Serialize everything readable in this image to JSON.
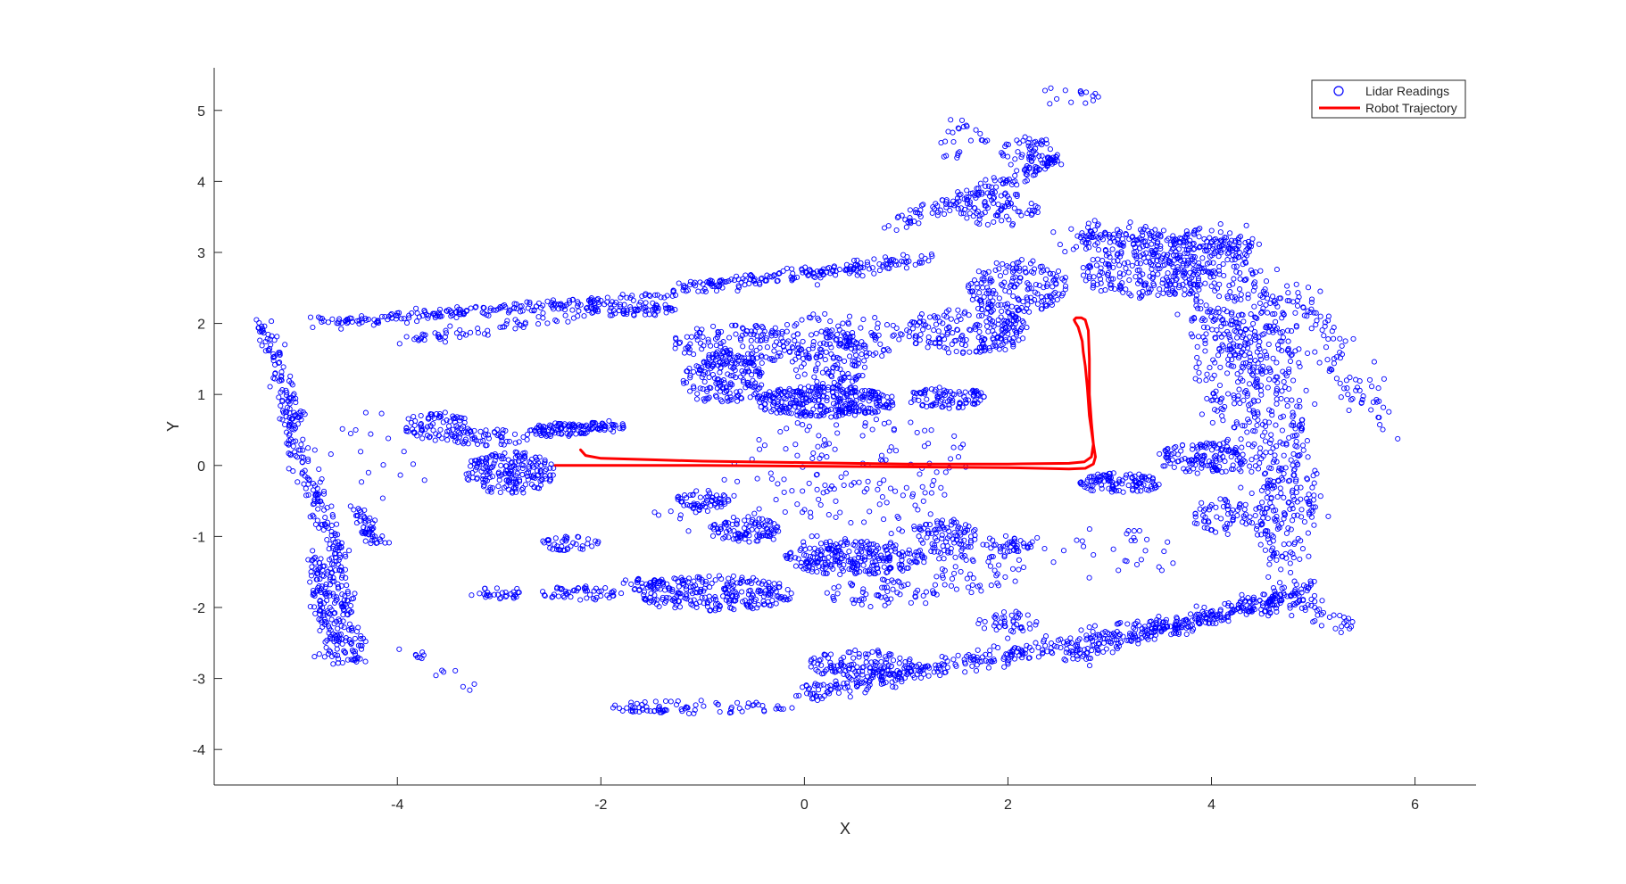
{
  "chart_data": {
    "type": "scatter",
    "title": "",
    "xlabel": "X",
    "ylabel": "Y",
    "xlim": [
      -5.8,
      6.6
    ],
    "ylim": [
      -4.5,
      5.6
    ],
    "xticks": [
      -4,
      -2,
      0,
      2,
      4,
      6
    ],
    "yticks": [
      -4,
      -3,
      -2,
      -1,
      0,
      1,
      2,
      3,
      4,
      5
    ],
    "xtick_labels": [
      "-4",
      "-2",
      "0",
      "2",
      "4",
      "6"
    ],
    "ytick_labels": [
      "-4",
      "-3",
      "-2",
      "-1",
      "0",
      "1",
      "2",
      "3",
      "4",
      "5"
    ],
    "grid": false,
    "legend": {
      "location": "top-right"
    },
    "series": [
      {
        "name": "Lidar Readings",
        "marker": "open-circle",
        "color": "#0000ff",
        "clusters": [
          {
            "shape": "line",
            "from": [
              -4.8,
              2.0
            ],
            "to": [
              -1.2,
              2.4
            ],
            "count": 220,
            "spread": 0.04
          },
          {
            "shape": "line",
            "from": [
              -1.2,
              2.5
            ],
            "to": [
              1.2,
              2.9
            ],
            "count": 200,
            "spread": 0.05
          },
          {
            "shape": "line",
            "from": [
              -4.0,
              1.75
            ],
            "to": [
              -2.0,
              2.15
            ],
            "count": 60,
            "spread": 0.05
          },
          {
            "shape": "line",
            "from": [
              -5.3,
              2.0
            ],
            "to": [
              -5.0,
              0.6
            ],
            "count": 90,
            "spread": 0.05
          },
          {
            "shape": "line",
            "from": [
              -5.1,
              0.8
            ],
            "to": [
              -4.9,
              -0.2
            ],
            "count": 60,
            "spread": 0.05
          },
          {
            "shape": "line",
            "from": [
              -4.85,
              -0.2
            ],
            "to": [
              -4.55,
              -1.3
            ],
            "count": 80,
            "spread": 0.05
          },
          {
            "shape": "line",
            "from": [
              -4.8,
              -1.3
            ],
            "to": [
              -4.6,
              -2.8
            ],
            "count": 140,
            "spread": 0.07
          },
          {
            "shape": "line",
            "from": [
              -4.6,
              -1.3
            ],
            "to": [
              -4.4,
              -2.8
            ],
            "count": 100,
            "spread": 0.06
          },
          {
            "shape": "line",
            "from": [
              -4.4,
              -0.6
            ],
            "to": [
              -4.2,
              -1.1
            ],
            "count": 50,
            "spread": 0.05
          },
          {
            "shape": "line",
            "from": [
              -3.9,
              -2.6
            ],
            "to": [
              -3.2,
              -3.2
            ],
            "count": 15,
            "spread": 0.05
          },
          {
            "shape": "blob",
            "center": [
              -3.6,
              0.55
            ],
            "radius": [
              0.35,
              0.2
            ],
            "count": 90
          },
          {
            "shape": "blob",
            "center": [
              -2.9,
              -0.1
            ],
            "radius": [
              0.45,
              0.3
            ],
            "count": 200
          },
          {
            "shape": "blob",
            "center": [
              -2.4,
              0.5
            ],
            "radius": [
              0.3,
              0.1
            ],
            "count": 80
          },
          {
            "shape": "blob",
            "center": [
              -1.95,
              0.55
            ],
            "radius": [
              0.2,
              0.08
            ],
            "count": 40
          },
          {
            "shape": "blob",
            "center": [
              -3.1,
              0.4
            ],
            "radius": [
              0.4,
              0.12
            ],
            "count": 50
          },
          {
            "shape": "blob",
            "center": [
              -1.7,
              2.2
            ],
            "radius": [
              0.45,
              0.1
            ],
            "count": 70
          },
          {
            "shape": "blob",
            "center": [
              -0.7,
              1.7
            ],
            "radius": [
              0.6,
              0.3
            ],
            "count": 150
          },
          {
            "shape": "blob",
            "center": [
              -0.8,
              1.2
            ],
            "radius": [
              0.4,
              0.35
            ],
            "count": 160
          },
          {
            "shape": "blob",
            "center": [
              0.2,
              0.9
            ],
            "radius": [
              0.7,
              0.22
            ],
            "count": 320
          },
          {
            "shape": "blob",
            "center": [
              0.25,
              1.5
            ],
            "radius": [
              0.4,
              0.4
            ],
            "count": 120
          },
          {
            "shape": "blob",
            "center": [
              1.4,
              0.95
            ],
            "radius": [
              0.4,
              0.15
            ],
            "count": 90
          },
          {
            "shape": "blob",
            "center": [
              1.6,
              1.9
            ],
            "radius": [
              0.6,
              0.35
            ],
            "count": 200
          },
          {
            "shape": "blob",
            "center": [
              2.1,
              2.5
            ],
            "radius": [
              0.5,
              0.4
            ],
            "count": 180
          },
          {
            "shape": "blob",
            "center": [
              0.3,
              1.8
            ],
            "radius": [
              0.7,
              0.35
            ],
            "count": 100
          },
          {
            "shape": "line",
            "from": [
              0.9,
              3.4
            ],
            "to": [
              2.5,
              4.3
            ],
            "count": 130,
            "spread": 0.06
          },
          {
            "shape": "blob",
            "center": [
              2.2,
              4.4
            ],
            "radius": [
              0.3,
              0.25
            ],
            "count": 60
          },
          {
            "shape": "blob",
            "center": [
              1.9,
              3.6
            ],
            "radius": [
              0.4,
              0.25
            ],
            "count": 80
          },
          {
            "shape": "blob",
            "center": [
              1.5,
              4.6
            ],
            "radius": [
              0.3,
              0.3
            ],
            "count": 25
          },
          {
            "shape": "blob",
            "center": [
              2.6,
              5.2
            ],
            "radius": [
              0.3,
              0.15
            ],
            "count": 15
          },
          {
            "shape": "line",
            "from": [
              2.6,
              3.2
            ],
            "to": [
              4.3,
              3.15
            ],
            "count": 220,
            "spread": 0.1
          },
          {
            "shape": "blob",
            "center": [
              3.4,
              2.7
            ],
            "radius": [
              0.7,
              0.35
            ],
            "count": 220
          },
          {
            "shape": "line",
            "from": [
              4.2,
              3.2
            ],
            "to": [
              4.7,
              -1.4
            ],
            "count": 420,
            "spread": 0.14
          },
          {
            "shape": "line",
            "from": [
              4.6,
              2.6
            ],
            "to": [
              5.0,
              -0.8
            ],
            "count": 160,
            "spread": 0.1
          },
          {
            "shape": "line",
            "from": [
              3.6,
              3.0
            ],
            "to": [
              4.4,
              1.2
            ],
            "count": 110,
            "spread": 0.1
          },
          {
            "shape": "line",
            "from": [
              4.8,
              2.5
            ],
            "to": [
              5.8,
              0.4
            ],
            "count": 90,
            "spread": 0.1
          },
          {
            "shape": "line",
            "from": [
              3.8,
              2.2
            ],
            "to": [
              4.2,
              0.2
            ],
            "count": 60,
            "spread": 0.08
          },
          {
            "shape": "blob",
            "center": [
              3.1,
              -0.25
            ],
            "radius": [
              0.4,
              0.15
            ],
            "count": 110
          },
          {
            "shape": "blob",
            "center": [
              3.9,
              0.1
            ],
            "radius": [
              0.45,
              0.22
            ],
            "count": 130
          },
          {
            "shape": "blob",
            "center": [
              4.1,
              -0.7
            ],
            "radius": [
              0.3,
              0.25
            ],
            "count": 60
          },
          {
            "shape": "line",
            "from": [
              0.0,
              -3.2
            ],
            "to": [
              4.8,
              -1.9
            ],
            "count": 420,
            "spread": 0.07
          },
          {
            "shape": "line",
            "from": [
              2.6,
              -2.7
            ],
            "to": [
              5.0,
              -1.7
            ],
            "count": 200,
            "spread": 0.06
          },
          {
            "shape": "line",
            "from": [
              4.7,
              -1.8
            ],
            "to": [
              5.4,
              -2.3
            ],
            "count": 40,
            "spread": 0.08
          },
          {
            "shape": "blob",
            "center": [
              0.6,
              -2.8
            ],
            "radius": [
              0.6,
              0.2
            ],
            "count": 130
          },
          {
            "shape": "blob",
            "center": [
              -1.0,
              -3.4
            ],
            "radius": [
              0.9,
              0.1
            ],
            "count": 60
          },
          {
            "shape": "blob",
            "center": [
              -1.6,
              -3.45
            ],
            "radius": [
              0.25,
              0.05
            ],
            "count": 20
          },
          {
            "shape": "blob",
            "center": [
              2.0,
              -2.2
            ],
            "radius": [
              0.3,
              0.15
            ],
            "count": 40
          },
          {
            "shape": "blob",
            "center": [
              -0.9,
              -1.8
            ],
            "radius": [
              0.8,
              0.25
            ],
            "count": 260
          },
          {
            "shape": "blob",
            "center": [
              -1.0,
              -0.5
            ],
            "radius": [
              0.3,
              0.15
            ],
            "count": 60
          },
          {
            "shape": "blob",
            "center": [
              -0.6,
              -0.9
            ],
            "radius": [
              0.35,
              0.18
            ],
            "count": 90
          },
          {
            "shape": "blob",
            "center": [
              0.5,
              -1.3
            ],
            "radius": [
              0.7,
              0.25
            ],
            "count": 260
          },
          {
            "shape": "blob",
            "center": [
              1.4,
              -1.0
            ],
            "radius": [
              0.3,
              0.25
            ],
            "count": 90
          },
          {
            "shape": "blob",
            "center": [
              2.0,
              -1.1
            ],
            "radius": [
              0.25,
              0.12
            ],
            "count": 40
          },
          {
            "shape": "blob",
            "center": [
              -2.3,
              -1.1
            ],
            "radius": [
              0.3,
              0.1
            ],
            "count": 40
          },
          {
            "shape": "blob",
            "center": [
              -3.0,
              -1.8
            ],
            "radius": [
              0.3,
              0.08
            ],
            "count": 30
          },
          {
            "shape": "blob",
            "center": [
              -2.2,
              -1.8
            ],
            "radius": [
              0.4,
              0.1
            ],
            "count": 50
          },
          {
            "shape": "blob",
            "center": [
              -1.6,
              -1.65
            ],
            "radius": [
              0.2,
              0.06
            ],
            "count": 20
          },
          {
            "shape": "blob",
            "center": [
              0.8,
              -1.8
            ],
            "radius": [
              0.6,
              0.2
            ],
            "count": 60
          },
          {
            "shape": "blob",
            "center": [
              1.7,
              -1.5
            ],
            "radius": [
              0.5,
              0.3
            ],
            "count": 50
          },
          {
            "shape": "blob",
            "center": [
              0.5,
              0.1
            ],
            "radius": [
              1.2,
              0.6
            ],
            "count": 90
          },
          {
            "shape": "blob",
            "center": [
              0.0,
              -0.6
            ],
            "radius": [
              1.5,
              0.5
            ],
            "count": 80
          },
          {
            "shape": "blob",
            "center": [
              -4.3,
              0.0
            ],
            "radius": [
              0.6,
              0.8
            ],
            "count": 20
          },
          {
            "shape": "blob",
            "center": [
              3.0,
              -1.2
            ],
            "radius": [
              0.8,
              0.4
            ],
            "count": 30
          }
        ]
      },
      {
        "name": "Robot Trajectory",
        "color": "#ff0000",
        "x": [
          -2.2,
          -2.15,
          -2.0,
          -1.5,
          -1.0,
          0.0,
          1.0,
          2.0,
          2.6,
          2.75,
          2.82,
          2.84,
          2.8,
          2.78,
          2.76,
          2.74,
          2.73,
          2.71,
          2.69,
          2.66,
          2.65,
          2.67,
          2.72,
          2.76,
          2.79,
          2.8,
          2.8,
          2.82,
          2.84,
          2.86,
          2.84,
          2.76,
          2.6,
          2.0,
          1.0,
          0.0,
          -1.0,
          -2.0,
          -2.45
        ],
        "y": [
          0.22,
          0.14,
          0.1,
          0.08,
          0.06,
          0.04,
          0.02,
          0.02,
          0.03,
          0.05,
          0.12,
          0.3,
          0.7,
          1.1,
          1.4,
          1.6,
          1.75,
          1.85,
          1.95,
          2.02,
          2.05,
          2.08,
          2.08,
          2.05,
          1.9,
          1.5,
          1.0,
          0.6,
          0.3,
          0.12,
          0.02,
          -0.04,
          -0.05,
          -0.03,
          -0.02,
          -0.01,
          0.0,
          0.0,
          0.0
        ]
      }
    ]
  }
}
